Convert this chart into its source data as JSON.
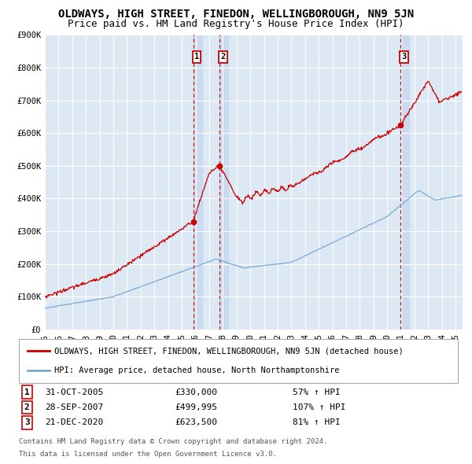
{
  "title": "OLDWAYS, HIGH STREET, FINEDON, WELLINGBOROUGH, NN9 5JN",
  "subtitle": "Price paid vs. HM Land Registry's House Price Index (HPI)",
  "ylim": [
    0,
    900000
  ],
  "yticks": [
    0,
    100000,
    200000,
    300000,
    400000,
    500000,
    600000,
    700000,
    800000,
    900000
  ],
  "ytick_labels": [
    "£0",
    "£100K",
    "£200K",
    "£300K",
    "£400K",
    "£500K",
    "£600K",
    "£700K",
    "£800K",
    "£900K"
  ],
  "xlim_start": 1995.0,
  "xlim_end": 2025.5,
  "xtick_years": [
    1995,
    1996,
    1997,
    1998,
    1999,
    2000,
    2001,
    2002,
    2003,
    2004,
    2005,
    2006,
    2007,
    2008,
    2009,
    2010,
    2011,
    2012,
    2013,
    2014,
    2015,
    2016,
    2017,
    2018,
    2019,
    2020,
    2021,
    2022,
    2023,
    2024,
    2025
  ],
  "background_color": "#ffffff",
  "plot_bg_color": "#dde8f5",
  "grid_color": "#ffffff",
  "sale1_date": 2005.83,
  "sale1_price": 330000,
  "sale1_label": "1",
  "sale1_date_str": "31-OCT-2005",
  "sale1_price_str": "£330,000",
  "sale1_hpi_str": "57% ↑ HPI",
  "sale2_date": 2007.75,
  "sale2_price": 499995,
  "sale2_label": "2",
  "sale2_date_str": "28-SEP-2007",
  "sale2_price_str": "£499,995",
  "sale2_hpi_str": "107% ↑ HPI",
  "sale3_date": 2020.97,
  "sale3_price": 623500,
  "sale3_label": "3",
  "sale3_date_str": "21-DEC-2020",
  "sale3_price_str": "£623,500",
  "sale3_hpi_str": "81% ↑ HPI",
  "red_line_color": "#cc0000",
  "blue_line_color": "#7aadd4",
  "sale_dot_color": "#cc0000",
  "vline_color": "#cc0000",
  "shade_color": "#c8d8ee",
  "legend_red_label": "OLDWAYS, HIGH STREET, FINEDON, WELLINGBOROUGH, NN9 5JN (detached house)",
  "legend_blue_label": "HPI: Average price, detached house, North Northamptonshire",
  "footer_line1": "Contains HM Land Registry data © Crown copyright and database right 2024.",
  "footer_line2": "This data is licensed under the Open Government Licence v3.0.",
  "title_fontsize": 10,
  "subtitle_fontsize": 9,
  "tick_fontsize": 7.5,
  "legend_fontsize": 7.5,
  "footer_fontsize": 6.5
}
